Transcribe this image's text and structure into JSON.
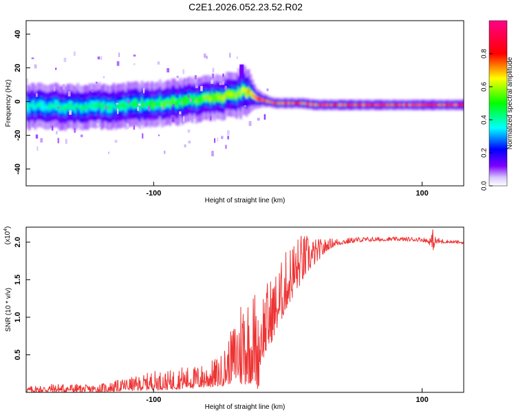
{
  "title": "C2E1.2026.052.23.52.R02",
  "chart_data": [
    {
      "type": "heatmap",
      "name": "spectrogram",
      "xlabel": "Height of straight line (km)",
      "ylabel": "Frequency (Hz)",
      "xlim": [
        -195,
        131
      ],
      "ylim": [
        -50,
        48
      ],
      "xticks": [
        -100,
        100
      ],
      "xtick_labels": [
        "-100",
        "100"
      ],
      "yticks": [
        -40,
        -20,
        0,
        20,
        40
      ],
      "ytick_labels": [
        "-40",
        "-20",
        "0",
        "20",
        "40"
      ],
      "ridge_x": [
        -195,
        -175,
        -150,
        -130,
        -110,
        -100,
        -90,
        -80,
        -70,
        -60,
        -50,
        -40,
        -35,
        -30,
        -25,
        -20,
        -15,
        -10,
        -5,
        0,
        10,
        20,
        40,
        60,
        80,
        100,
        120,
        131
      ],
      "ridge_freq": [
        -3,
        -3,
        -3,
        -3,
        -2,
        -1,
        -1,
        0,
        1,
        2,
        3,
        4,
        6,
        5,
        2,
        1,
        0,
        -1,
        -1,
        -1,
        -1,
        -2,
        -2,
        -2,
        -2,
        -2,
        -2,
        -2
      ],
      "ridge_amplitude": [
        0.4,
        0.42,
        0.45,
        0.45,
        0.5,
        0.55,
        0.55,
        0.55,
        0.55,
        0.6,
        0.6,
        0.6,
        0.65,
        0.7,
        0.8,
        0.9,
        0.9,
        0.9,
        0.95,
        0.95,
        0.95,
        0.95,
        0.97,
        0.98,
        0.99,
        1.0,
        1.0,
        1.0
      ],
      "spread_hz": [
        6,
        6,
        6,
        6,
        6,
        6,
        6,
        6,
        6,
        6,
        6,
        6,
        7,
        6,
        3,
        2,
        1.5,
        1.5,
        1.5,
        1.5,
        1.5,
        1.5,
        1.5,
        1.5,
        1.5,
        1.5,
        1.5,
        1.5
      ],
      "colorbar": {
        "label": "Normalized spectral amplitude",
        "range": [
          0,
          1
        ],
        "ticks": [
          0.0,
          0.2,
          0.4,
          0.6,
          0.8
        ],
        "tick_labels": [
          "0.0",
          "0.2",
          "0.4",
          "0.6",
          "0.8"
        ],
        "colors": [
          "#ffffff",
          "#7f00ff",
          "#0000ff",
          "#00ffff",
          "#00ff00",
          "#ffff00",
          "#ff0000",
          "#ff0088"
        ]
      }
    },
    {
      "type": "line",
      "name": "snr",
      "xlabel": "Height of straight line (km)",
      "ylabel": "SNR (10 * v/v)",
      "y_multiplier": "(x10",
      "y_multiplier_exp": "4",
      "xlim": [
        -195,
        131
      ],
      "ylim": [
        0,
        2.2
      ],
      "xticks": [
        -100,
        100
      ],
      "xtick_labels": [
        "-100",
        "100"
      ],
      "yticks": [
        0.5,
        1.0,
        1.5,
        2.0
      ],
      "ytick_labels": [
        "0.5",
        "1.0",
        "1.5",
        "2.0"
      ],
      "color": "#ee3333",
      "envelope_x": [
        -195,
        -175,
        -160,
        -150,
        -140,
        -130,
        -120,
        -110,
        -100,
        -90,
        -80,
        -70,
        -60,
        -50,
        -45,
        -40,
        -35,
        -32,
        -28,
        -25,
        -22,
        -20,
        -15,
        -10,
        -5,
        0,
        5,
        10,
        15,
        20,
        25,
        30,
        35,
        40,
        50,
        60,
        80,
        100,
        105,
        108,
        110,
        120,
        131
      ],
      "envelope_lo": [
        0.0,
        0.0,
        0.0,
        0.0,
        0.0,
        0.01,
        0.02,
        0.02,
        0.03,
        0.03,
        0.04,
        0.05,
        0.06,
        0.08,
        0.1,
        0.15,
        0.08,
        0.1,
        0.12,
        0.15,
        0.02,
        0.4,
        0.55,
        0.75,
        0.95,
        1.15,
        1.3,
        1.45,
        1.6,
        1.7,
        1.8,
        1.9,
        1.95,
        1.97,
        2.0,
        2.01,
        2.02,
        2.01,
        1.98,
        1.88,
        1.98,
        1.99,
        1.98
      ],
      "envelope_hi": [
        0.08,
        0.12,
        0.12,
        0.1,
        0.12,
        0.15,
        0.2,
        0.22,
        0.3,
        0.28,
        0.35,
        0.35,
        0.4,
        0.5,
        0.7,
        0.95,
        1.35,
        1.55,
        1.25,
        1.45,
        1.05,
        1.4,
        1.5,
        1.6,
        1.75,
        1.95,
        2.08,
        2.12,
        2.1,
        2.05,
        2.05,
        2.05,
        2.06,
        2.05,
        2.07,
        2.07,
        2.07,
        2.07,
        2.06,
        2.18,
        2.07,
        2.03,
        2.02
      ]
    }
  ]
}
